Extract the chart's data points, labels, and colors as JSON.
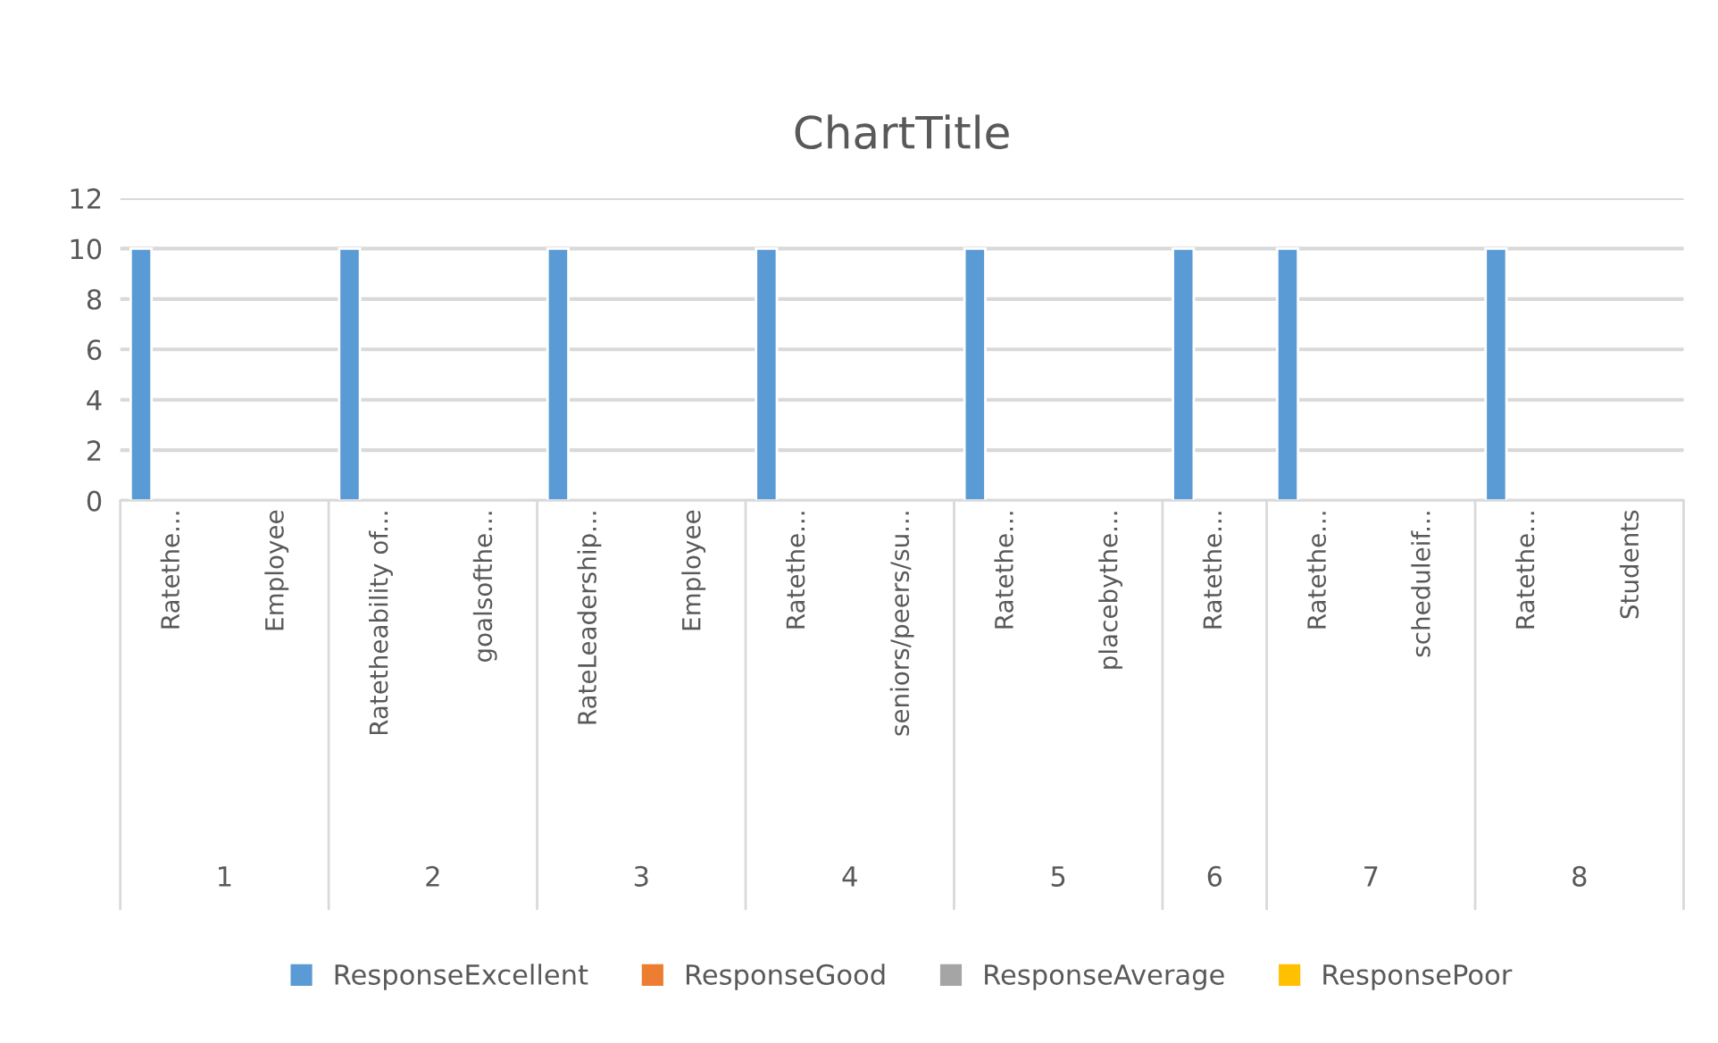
{
  "chart_data": {
    "type": "bar",
    "title": "ChartTitle",
    "categories": [
      "Ratethe...",
      "Employee",
      "Ratetheability of...",
      "goalsofthe...",
      "RateLeadership...",
      "Employee",
      "Ratethe...",
      "seniors/peers/su...",
      "Ratethe...",
      "placebythe...",
      "Ratethe...",
      "Ratethe...",
      "scheduleif...",
      "Ratethe...",
      "Students"
    ],
    "series": [
      {
        "name": "ResponseExcellent",
        "color": "#5b9bd5",
        "values": [
          10,
          null,
          10,
          null,
          10,
          null,
          10,
          null,
          10,
          null,
          10,
          10,
          null,
          10,
          null
        ]
      },
      {
        "name": "ResponseGood",
        "color": "#ed7d31",
        "values": [
          null,
          null,
          null,
          null,
          null,
          null,
          null,
          null,
          null,
          null,
          null,
          null,
          null,
          null,
          null
        ]
      },
      {
        "name": "ResponseAverage",
        "color": "#a5a5a5",
        "values": [
          null,
          null,
          null,
          null,
          null,
          null,
          null,
          null,
          null,
          null,
          null,
          null,
          null,
          null,
          null
        ]
      },
      {
        "name": "ResponsePoor",
        "color": "#ffc000",
        "values": [
          null,
          null,
          null,
          null,
          null,
          null,
          null,
          null,
          null,
          null,
          null,
          null,
          null,
          null,
          null
        ]
      }
    ],
    "annotations": [
      "1",
      "2",
      "3",
      "4",
      "5",
      "6",
      "7",
      "8"
    ],
    "ylim": [
      0,
      12
    ],
    "yticks": [
      0,
      2,
      4,
      6,
      8,
      10,
      12
    ],
    "grid": "y",
    "legend": "bottom"
  }
}
